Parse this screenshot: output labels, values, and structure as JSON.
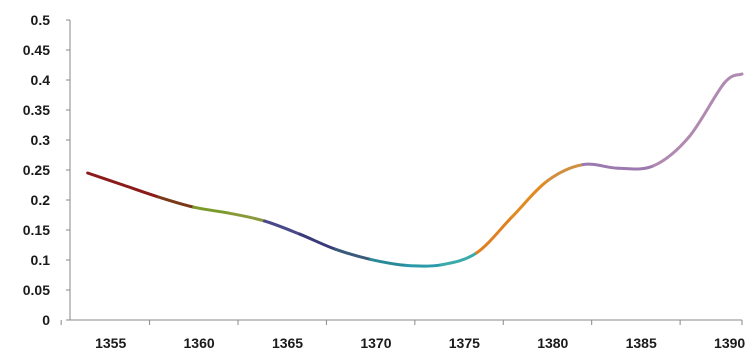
{
  "chart_data": {
    "type": "line",
    "title": "",
    "xlabel": "",
    "ylabel": "",
    "x_ticks": [
      "1355",
      "1360",
      "1365",
      "1370",
      "1375",
      "1380",
      "1385",
      "1390"
    ],
    "y_ticks": [
      "0",
      "0.05",
      "0.1",
      "0.15",
      "0.2",
      "0.25",
      "0.3",
      "0.35",
      "0.4",
      "0.45",
      "0.5"
    ],
    "xlim": [
      1353,
      1391
    ],
    "ylim": [
      0,
      0.5
    ],
    "grid": false,
    "legend": "none",
    "smooth": true,
    "points": [
      {
        "x": 1354,
        "y": 0.245
      },
      {
        "x": 1356,
        "y": 0.225
      },
      {
        "x": 1358,
        "y": 0.205
      },
      {
        "x": 1360,
        "y": 0.188
      },
      {
        "x": 1362,
        "y": 0.178
      },
      {
        "x": 1364,
        "y": 0.165
      },
      {
        "x": 1366,
        "y": 0.143
      },
      {
        "x": 1368,
        "y": 0.118
      },
      {
        "x": 1370,
        "y": 0.101
      },
      {
        "x": 1372,
        "y": 0.091
      },
      {
        "x": 1374,
        "y": 0.092
      },
      {
        "x": 1376,
        "y": 0.112
      },
      {
        "x": 1378,
        "y": 0.172
      },
      {
        "x": 1380,
        "y": 0.232
      },
      {
        "x": 1382,
        "y": 0.259
      },
      {
        "x": 1384,
        "y": 0.253
      },
      {
        "x": 1386,
        "y": 0.257
      },
      {
        "x": 1388,
        "y": 0.305
      },
      {
        "x": 1390,
        "y": 0.395
      },
      {
        "x": 1391,
        "y": 0.41
      }
    ],
    "segment_colors": [
      "#8b1a1a",
      "#8b1a1a",
      "#7a3a1a",
      "#7a9a2a",
      "#8a9a3a",
      "#4a4a8a",
      "#3a3a7a",
      "#3a5a7a",
      "#2a8a9a",
      "#2a9aaa",
      "#3aaaaa",
      "#e08020",
      "#e08a20",
      "#d09040",
      "#9a7ab0",
      "#9a7ab0",
      "#b08ab0",
      "#b08ab0",
      "#b08ab0"
    ]
  }
}
